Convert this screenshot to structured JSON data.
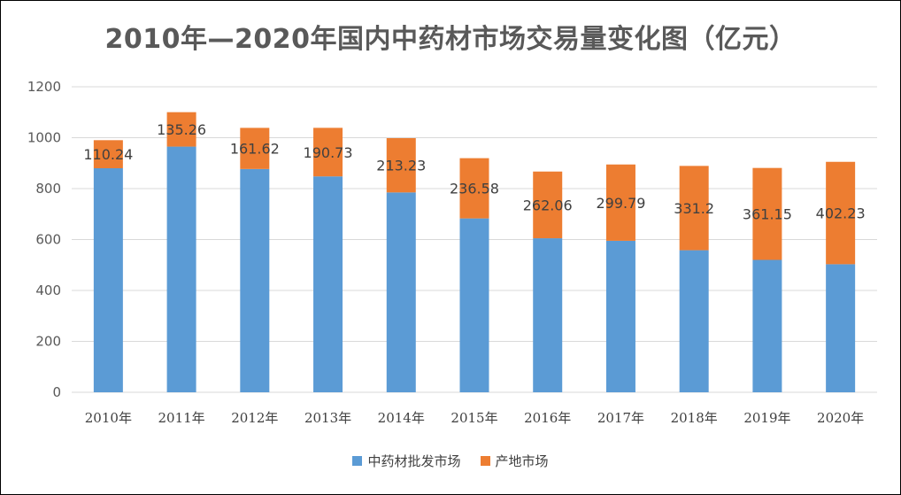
{
  "chart_data": {
    "type": "bar",
    "stacked": true,
    "title": "2010年—2020年国内中药材市场交易量变化图（亿元）",
    "xlabel": "",
    "ylabel": "",
    "ylim": [
      0,
      1200
    ],
    "yticks": [
      0,
      200,
      400,
      600,
      800,
      1000,
      1200
    ],
    "grid": true,
    "legend_position": "bottom",
    "categories": [
      "2010年",
      "2011年",
      "2012年",
      "2013年",
      "2014年",
      "2015年",
      "2016年",
      "2017年",
      "2018年",
      "2019年",
      "2020年"
    ],
    "series": [
      {
        "name": "中药材批发市场",
        "color": "#5B9BD5",
        "values": [
          880,
          965,
          877,
          848,
          785,
          683,
          605,
          595,
          558,
          520,
          503
        ]
      },
      {
        "name": "产地市场",
        "color": "#ED7D31",
        "values": [
          110.24,
          135.26,
          161.62,
          190.73,
          213.23,
          236.58,
          262.06,
          299.79,
          331.2,
          361.15,
          402.23
        ],
        "labels": [
          "110.24",
          "135.26",
          "161.62",
          "190.73",
          "213.23",
          "236.58",
          "262.06",
          "299.79",
          "331.2",
          "361.15",
          "402.23"
        ]
      }
    ]
  }
}
